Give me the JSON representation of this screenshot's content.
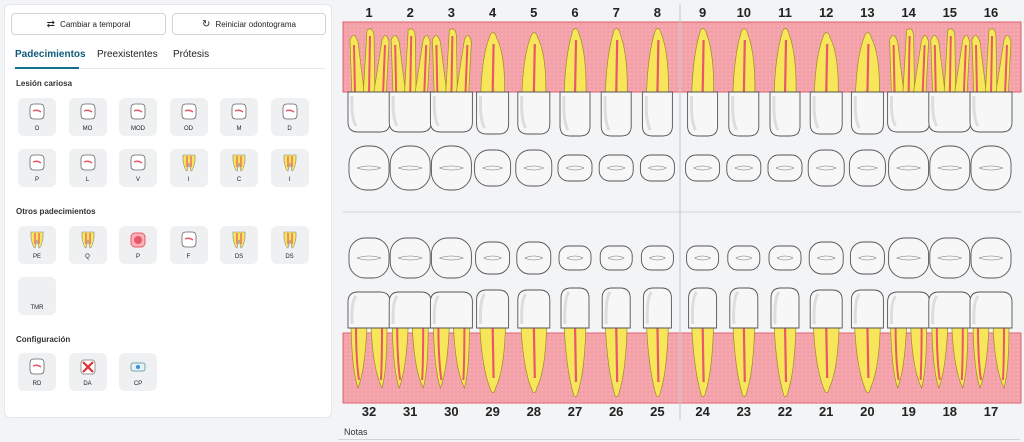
{
  "toolbar": {
    "switch_label": "Cambiar a temporal",
    "switch_icon": "swap-arrows-icon",
    "reset_label": "Reiniciar odontograma",
    "reset_icon": "refresh-icon"
  },
  "tabs": [
    {
      "label": "Padecimientos",
      "active": true
    },
    {
      "label": "Preexistentes",
      "active": false
    },
    {
      "label": "Prótesis",
      "active": false
    }
  ],
  "sections": {
    "caries": {
      "title": "Lesión cariosa",
      "row1": [
        "O",
        "MO",
        "MOD",
        "OD",
        "M",
        "D"
      ],
      "row2": [
        "P",
        "L",
        "V",
        "I",
        "C",
        "I"
      ]
    },
    "otros": {
      "title": "Otros padecimientos",
      "row1": [
        "PE",
        "Q",
        "P",
        "F",
        "DS",
        "DS"
      ],
      "row2": [
        "TMR"
      ]
    },
    "config": {
      "title": "Configuración",
      "row1": [
        "RD",
        "DA",
        "CP"
      ]
    }
  },
  "upper_teeth": [
    "1",
    "2",
    "3",
    "4",
    "5",
    "6",
    "7",
    "8",
    "9",
    "10",
    "11",
    "12",
    "13",
    "14",
    "15",
    "16"
  ],
  "lower_teeth": [
    "32",
    "31",
    "30",
    "29",
    "28",
    "27",
    "26",
    "25",
    "24",
    "23",
    "22",
    "21",
    "20",
    "19",
    "18",
    "17"
  ],
  "notes_label": "Notas",
  "colors": {
    "gum": "#f4a0a8",
    "root": "#f7e55a",
    "pulp": "#e8576a",
    "accent": "#0f6f8f"
  }
}
